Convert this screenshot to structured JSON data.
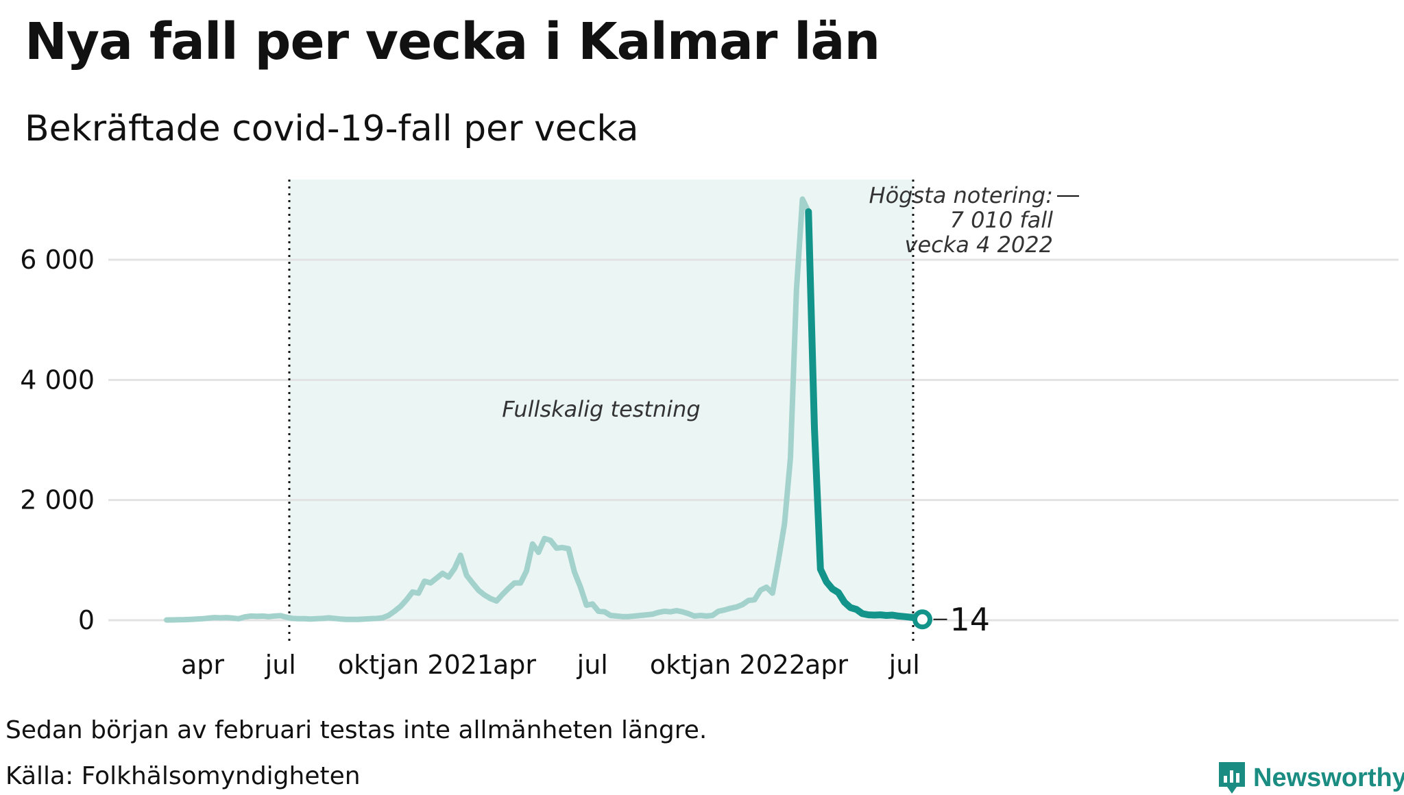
{
  "header": {
    "title": "Nya fall per vecka i Kalmar län",
    "subtitle": "Bekräftade covid-19-fall per vecka"
  },
  "footer": {
    "note": "Sedan början av februari testas inte allmänheten längre.",
    "source": "Källa: Folkhälsomyndigheten",
    "brand": "Newsworthy"
  },
  "colors": {
    "line_active": "#12948a",
    "line_faded": "#a3d1cb",
    "shade": "#eaf5f4",
    "grid": "#e2e2e2"
  },
  "chart_data": {
    "type": "line",
    "title": "Nya fall per vecka i Kalmar län",
    "subtitle": "Bekräftade covid-19-fall per vecka",
    "y_ticks": [
      0,
      2000,
      4000,
      6000
    ],
    "y_tick_labels": [
      "0",
      "2 000",
      "4 000",
      "6 000"
    ],
    "x_tick_labels": [
      "apr",
      "jul",
      "okt",
      "jan 2021",
      "apr",
      "jul",
      "okt",
      "jan 2022",
      "apr",
      "jul"
    ],
    "ylim": [
      0,
      7500
    ],
    "grid": true,
    "shaded_period": {
      "label": "Fullskalig testning",
      "from_week": 20,
      "to_week": 124
    },
    "peak_annotation": [
      "Högsta notering:",
      "7 010 fall",
      "vecka 4 2022"
    ],
    "end_label": "14",
    "series": [
      {
        "values": [
          5,
          6,
          8,
          10,
          15,
          20,
          25,
          35,
          45,
          40,
          45,
          35,
          25,
          55,
          70,
          65,
          70,
          60,
          70,
          75,
          50,
          30,
          25,
          25,
          20,
          25,
          30,
          40,
          30,
          20,
          15,
          15,
          15,
          20,
          25,
          30,
          40,
          80,
          150,
          230,
          340,
          470,
          450,
          650,
          620,
          700,
          780,
          720,
          860,
          1080,
          750,
          620,
          500,
          420,
          360,
          320,
          430,
          530,
          620,
          620,
          820,
          1270,
          1130,
          1360,
          1330,
          1200,
          1210,
          1190,
          800,
          550,
          250,
          270,
          150,
          140,
          80,
          70,
          60,
          60,
          70,
          80,
          90,
          100,
          130,
          150,
          140,
          160,
          140,
          110,
          70,
          80,
          70,
          80,
          150,
          170,
          200,
          220,
          260,
          330,
          340,
          500,
          550,
          450,
          1000,
          1600,
          2700,
          5500,
          7010,
          6800,
          3200,
          850,
          640,
          520,
          460,
          300,
          210,
          180,
          110,
          90,
          85,
          90,
          80,
          85,
          70,
          60,
          50,
          40,
          14
        ],
        "active_from_index": 107
      }
    ]
  }
}
